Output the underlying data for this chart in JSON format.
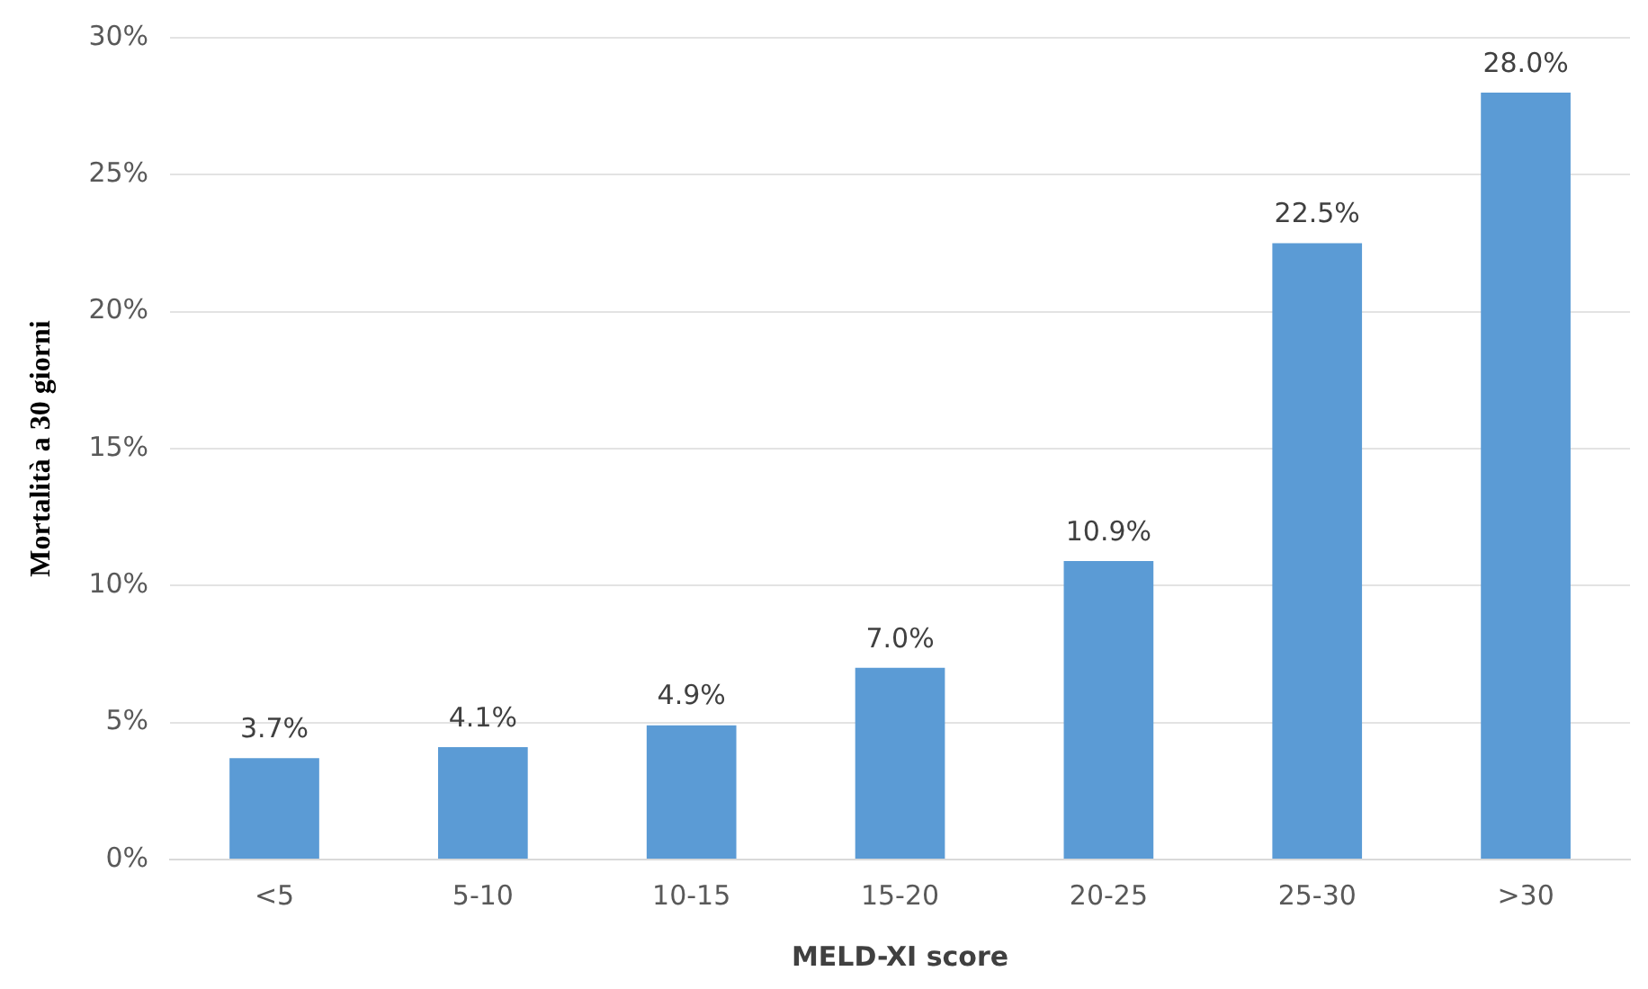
{
  "chart_data": {
    "type": "bar",
    "xlabel": "MELD-XI score",
    "ylabel": "Mortalità a 30 giorni",
    "categories": [
      "<5",
      "5-10",
      "10-15",
      "15-20",
      "20-25",
      "25-30",
      ">30"
    ],
    "values": [
      3.7,
      4.1,
      4.9,
      7.0,
      10.9,
      22.5,
      28.0
    ],
    "value_labels": [
      "3.7%",
      "4.1%",
      "4.9%",
      "7.0%",
      "10.9%",
      "22.5%",
      "28.0%"
    ],
    "color": "#5b9bd5",
    "ylim": [
      0,
      30
    ],
    "yticks": [
      {
        "value": 0,
        "label": "0%"
      },
      {
        "value": 5,
        "label": "5%"
      },
      {
        "value": 10,
        "label": "10%"
      },
      {
        "value": 15,
        "label": "15%"
      },
      {
        "value": 20,
        "label": "20%"
      },
      {
        "value": 25,
        "label": "25%"
      },
      {
        "value": 30,
        "label": "30%"
      }
    ],
    "grid": "y",
    "legend": false
  }
}
